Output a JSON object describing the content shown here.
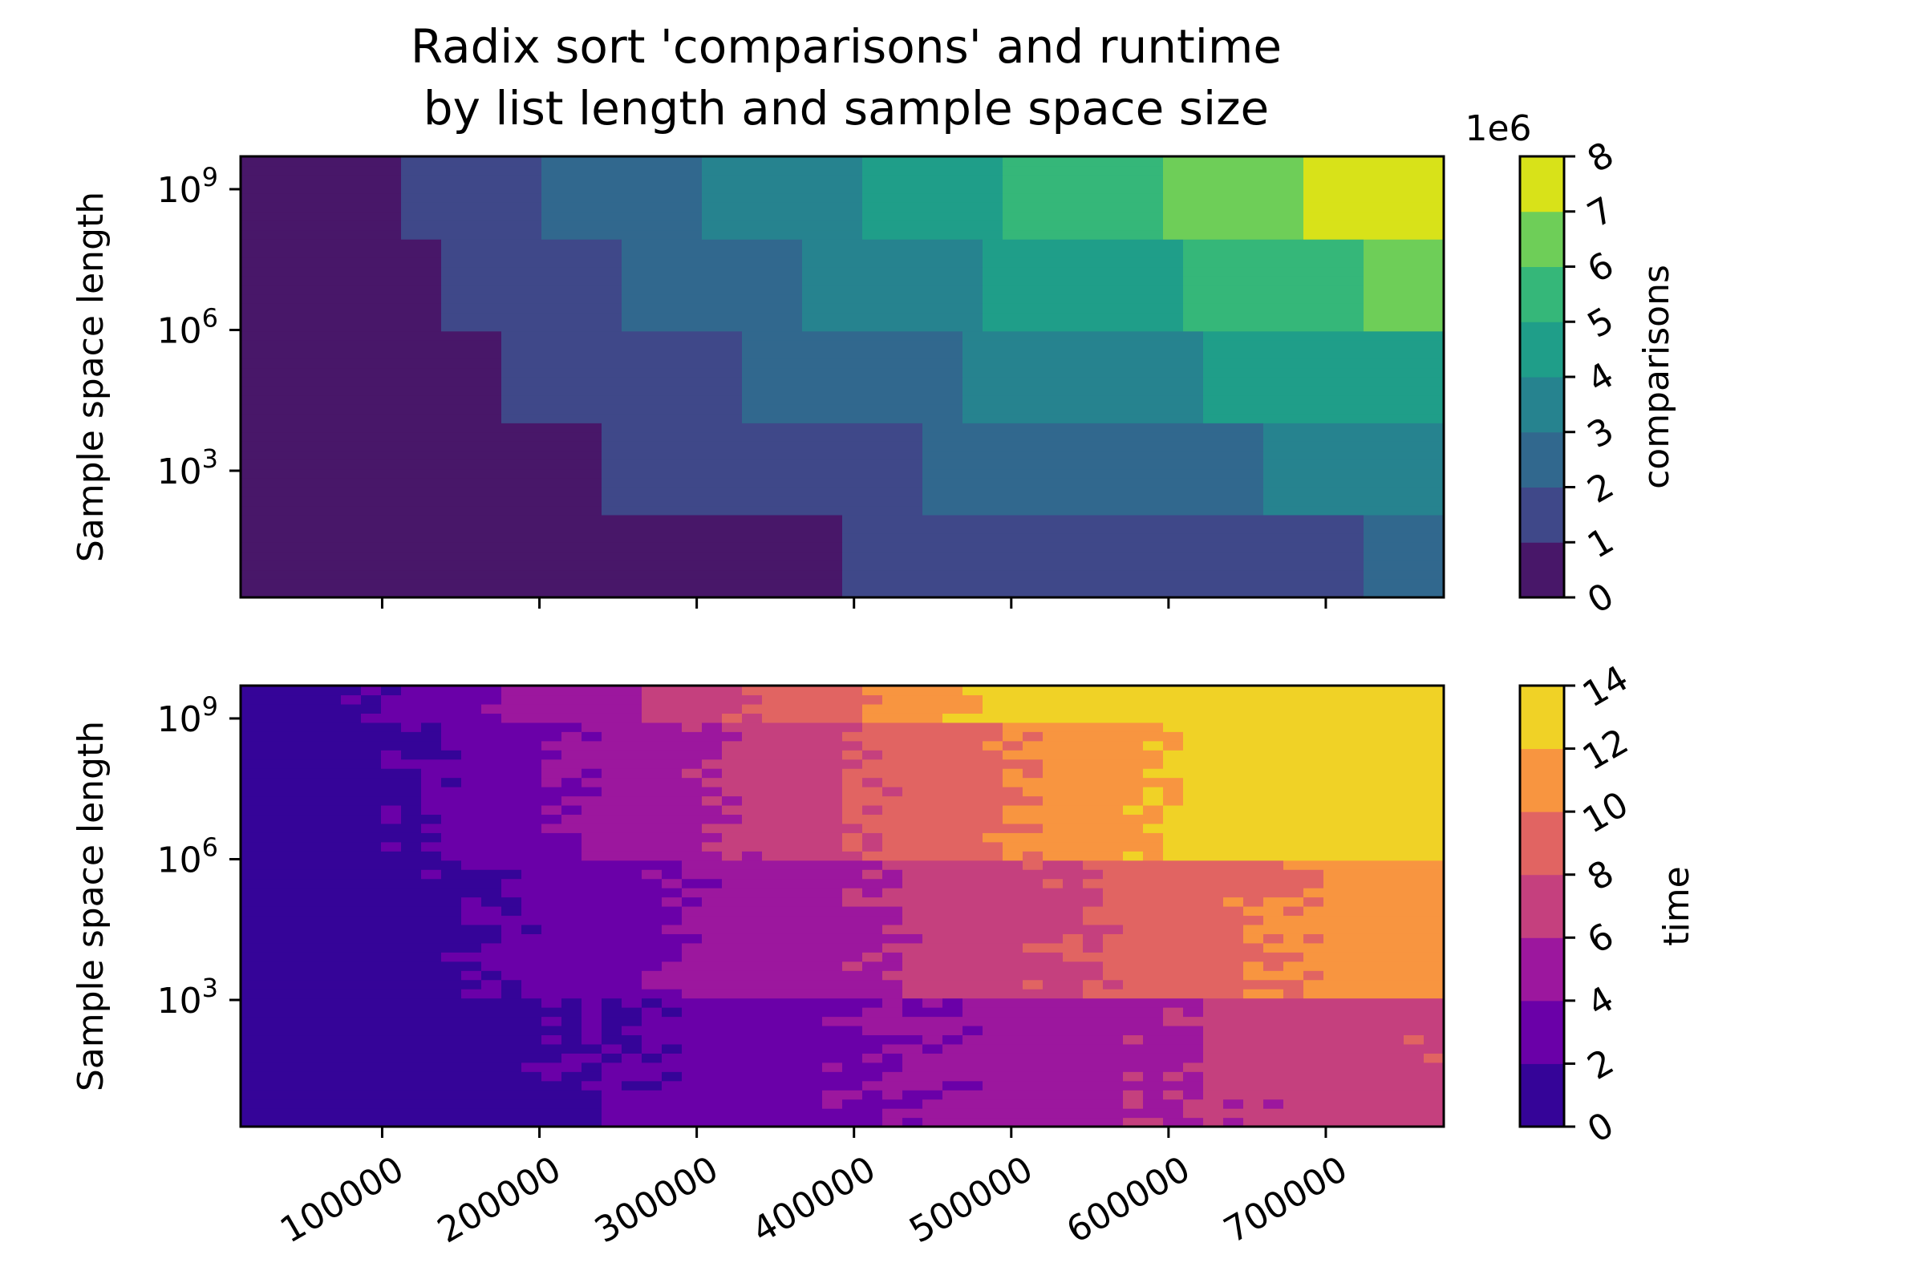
{
  "title_line1": "Radix sort 'comparisons' and runtime",
  "title_line2": "by list length and sample space size",
  "chart_data": [
    {
      "type": "heatmap",
      "name": "comparisons",
      "colormap": "viridis",
      "ylabel": "Sample space length",
      "xlabel": "",
      "x_ticks": [
        100000,
        200000,
        300000,
        400000,
        500000,
        600000,
        700000
      ],
      "x_range": [
        10000,
        775000
      ],
      "y_scale": "log",
      "y_range_log10": [
        0.3,
        9.7
      ],
      "y_ticks": [
        "10^3",
        "10^6",
        "10^9"
      ],
      "colorbar_label": "comparisons",
      "colorbar_multiplier": "1e6",
      "colorbar_ticks": [
        "0",
        "1",
        "2",
        "3",
        "4",
        "5",
        "6",
        "7",
        "8"
      ],
      "colorbar_range": [
        0,
        8
      ],
      "bands": [
        {
          "level": 0.5,
          "color": "#481769"
        },
        {
          "level": 1.5,
          "color": "#3f4889"
        },
        {
          "level": 2.5,
          "color": "#31688e"
        },
        {
          "level": 3.5,
          "color": "#26838f"
        },
        {
          "level": 4.5,
          "color": "#1f9e89"
        },
        {
          "level": 5.5,
          "color": "#35b779"
        },
        {
          "level": 6.5,
          "color": "#6ece58"
        },
        {
          "level": 7.5,
          "color": "#d8e219"
        }
      ]
    },
    {
      "type": "heatmap",
      "name": "time",
      "colormap": "plasma",
      "ylabel": "Sample space length",
      "xlabel": "",
      "x_ticks": [
        100000,
        200000,
        300000,
        400000,
        500000,
        600000,
        700000
      ],
      "x_range": [
        10000,
        775000
      ],
      "y_scale": "log",
      "y_range_log10": [
        0.3,
        9.7
      ],
      "y_ticks": [
        "10^3",
        "10^6",
        "10^9"
      ],
      "colorbar_label": "time",
      "colorbar_ticks": [
        "0",
        "2",
        "4",
        "6",
        "8",
        "10",
        "12",
        "14"
      ],
      "colorbar_range": [
        0,
        14
      ],
      "bands": [
        {
          "level": 1,
          "color": "#350498"
        },
        {
          "level": 3,
          "color": "#6a00a8"
        },
        {
          "level": 5,
          "color": "#9c179e"
        },
        {
          "level": 7,
          "color": "#c5407e"
        },
        {
          "level": 9,
          "color": "#e16462"
        },
        {
          "level": 11,
          "color": "#f89540"
        },
        {
          "level": 13,
          "color": "#f0d226"
        }
      ]
    }
  ]
}
